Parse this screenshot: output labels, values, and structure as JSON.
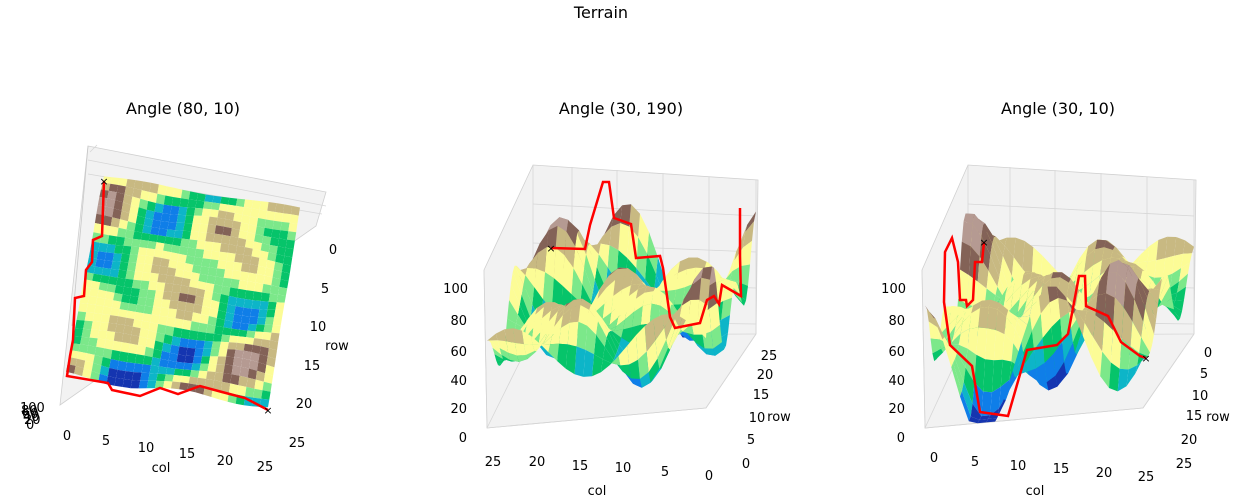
{
  "chart_data": {
    "type": "surface",
    "title": "Terrain",
    "zlim": [
      0,
      100
    ],
    "grid": true,
    "surface": {
      "rows": 26,
      "cols": 26,
      "colormap": "terrain",
      "colors": {
        "deep": "#1535b0",
        "water": "#0f7ee8",
        "teal": "#0db5c8",
        "green": "#06c46a",
        "lightgreen": "#7ce88a",
        "yellow": "#fcfc96",
        "khaki": "#c8b982",
        "brown": "#836257",
        "peak": "#b59a92",
        "path": "#ff0000"
      }
    },
    "path": {
      "color": "#ff0000",
      "start_marker": "x",
      "end_marker": "x",
      "start": {
        "row": 0,
        "col": 0
      },
      "end": {
        "row": 25,
        "col": 25
      }
    },
    "panels": [
      {
        "title": "Angle (80, 10)",
        "xlabel": "col",
        "ylabel": "row",
        "xticks": [
          "0",
          "5",
          "10",
          "15",
          "20",
          "25"
        ],
        "yticks": [
          "0",
          "5",
          "10",
          "15",
          "20",
          "25"
        ],
        "zticks": [
          "100",
          "80",
          "60",
          "40",
          "20",
          "0"
        ]
      },
      {
        "title": "Angle (30, 190)",
        "xlabel": "col",
        "ylabel": "row",
        "xticks": [
          "25",
          "20",
          "15",
          "10",
          "5",
          "0"
        ],
        "yticks": [
          "25",
          "20",
          "15",
          "10",
          "5",
          "0"
        ],
        "zticks": [
          "100",
          "80",
          "60",
          "40",
          "20",
          "0"
        ]
      },
      {
        "title": "Angle (30, 10)",
        "xlabel": "col",
        "ylabel": "row",
        "xticks": [
          "0",
          "5",
          "10",
          "15",
          "20",
          "25"
        ],
        "yticks": [
          "0",
          "5",
          "10",
          "15",
          "20",
          "25"
        ],
        "zticks": [
          "100",
          "80",
          "60",
          "40",
          "20",
          "0"
        ]
      }
    ]
  }
}
